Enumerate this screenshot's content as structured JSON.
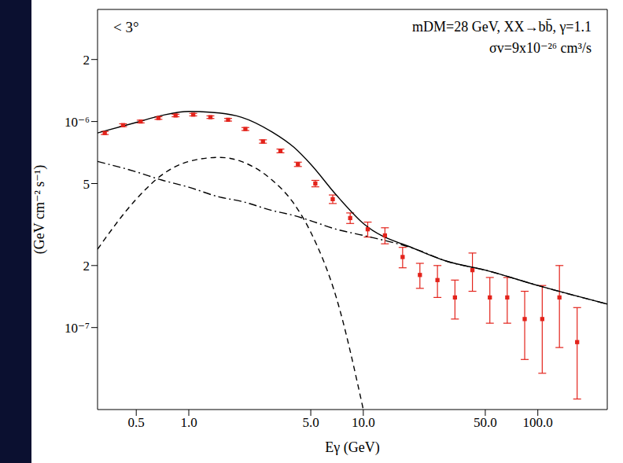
{
  "chart_data": {
    "type": "line",
    "log": true,
    "x_label": "Eγ (GeV)",
    "y_label": "(GeV cm⁻² s⁻¹)",
    "annotations": [
      "< 3°",
      "mDM=28 GeV, XX→bb̄, γ=1.1",
      "σv=9x10⁻²⁶ cm³/s"
    ],
    "xlim": [
      0.3,
      250
    ],
    "ylim": [
      4e-08,
      3.5e-06
    ],
    "xticks": [
      {
        "value": 0.5,
        "label": "0.5"
      },
      {
        "value": 1,
        "label": "1.0"
      },
      {
        "value": 5,
        "label": "5.0"
      },
      {
        "value": 10,
        "label": "10.0"
      },
      {
        "value": 50,
        "label": "50.0"
      },
      {
        "value": 100,
        "label": "100.0"
      }
    ],
    "yticks": [
      {
        "value": 2e-06,
        "label": "2"
      },
      {
        "value": 1e-06,
        "label": "10⁻⁶"
      },
      {
        "value": 5e-07,
        "label": "5"
      },
      {
        "value": 2e-07,
        "label": "2"
      },
      {
        "value": 1e-07,
        "label": "10⁻⁷"
      }
    ],
    "series": [
      {
        "type": "scatter",
        "color": "#e3231b",
        "marker": "square",
        "x": [
          0.33,
          0.42,
          0.53,
          0.67,
          0.84,
          1.06,
          1.33,
          1.68,
          2.11,
          2.66,
          3.35,
          4.22,
          5.31,
          6.68,
          8.41,
          10.6,
          13.3,
          16.8,
          21.1,
          26.6,
          33.5,
          42.2,
          53.1,
          66.8,
          84.1,
          106,
          133,
          168
        ],
        "values": [
          8.8e-07,
          9.6e-07,
          1e-06,
          1.04e-06,
          1.07e-06,
          1.08e-06,
          1.05e-06,
          1.02e-06,
          9.2e-07,
          8e-07,
          7.2e-07,
          6.2e-07,
          5e-07,
          4.2e-07,
          3.4e-07,
          3e-07,
          2.8e-07,
          2.2e-07,
          1.8e-07,
          1.7e-07,
          1.4e-07,
          1.9e-07,
          1.4e-07,
          1.4e-07,
          1.1e-07,
          1.1e-07,
          1.4e-07,
          8.5e-08
        ],
        "errors": [
          1.5e-08,
          1.5e-08,
          1.5e-08,
          1.5e-08,
          1.5e-08,
          1.5e-08,
          1.5e-08,
          1.5e-08,
          1.5e-08,
          1.5e-08,
          1.5e-08,
          1.5e-08,
          1.8e-08,
          2e-08,
          2e-08,
          2.5e-08,
          2.5e-08,
          2.5e-08,
          2.5e-08,
          3e-08,
          3e-08,
          4e-08,
          3.5e-08,
          3.5e-08,
          4e-08,
          5e-08,
          6e-08,
          4e-08
        ]
      },
      {
        "type": "line",
        "color": "#000000",
        "line_style": "solid",
        "x": [
          0.3,
          0.5,
          0.7,
          1,
          1.5,
          2,
          3,
          4,
          5,
          7,
          10,
          20,
          30,
          50,
          100,
          250
        ],
        "values": [
          8.8e-07,
          9.9e-07,
          1.07e-06,
          1.12e-06,
          1.1e-06,
          1.05e-06,
          8.9e-07,
          7.5e-07,
          6.2e-07,
          4.4e-07,
          3.2e-07,
          2.4e-07,
          2.1e-07,
          1.9e-07,
          1.6e-07,
          1.3e-07
        ]
      },
      {
        "type": "line",
        "color": "#000000",
        "line_style": "dashed",
        "x": [
          0.3,
          0.5,
          0.7,
          1,
          1.5,
          2,
          3,
          4,
          5,
          7,
          10
        ],
        "values": [
          2.4e-07,
          4.2e-07,
          5.5e-07,
          6.4e-07,
          6.7e-07,
          6.4e-07,
          5.2e-07,
          4e-07,
          2.9e-07,
          1.4e-07,
          4e-08
        ]
      },
      {
        "type": "line",
        "color": "#000000",
        "line_style": "dashdot",
        "x": [
          0.3,
          0.5,
          0.7,
          1,
          1.5,
          2,
          3,
          4,
          5,
          7,
          10,
          20,
          30,
          50,
          100,
          250
        ],
        "values": [
          6.4e-07,
          5.7e-07,
          5.2e-07,
          4.8e-07,
          4.3e-07,
          4.1e-07,
          3.7e-07,
          3.5e-07,
          3.3e-07,
          3e-07,
          2.8e-07,
          2.4e-07,
          2.1e-07,
          1.9e-07,
          1.6e-07,
          1.3e-07
        ]
      }
    ]
  }
}
